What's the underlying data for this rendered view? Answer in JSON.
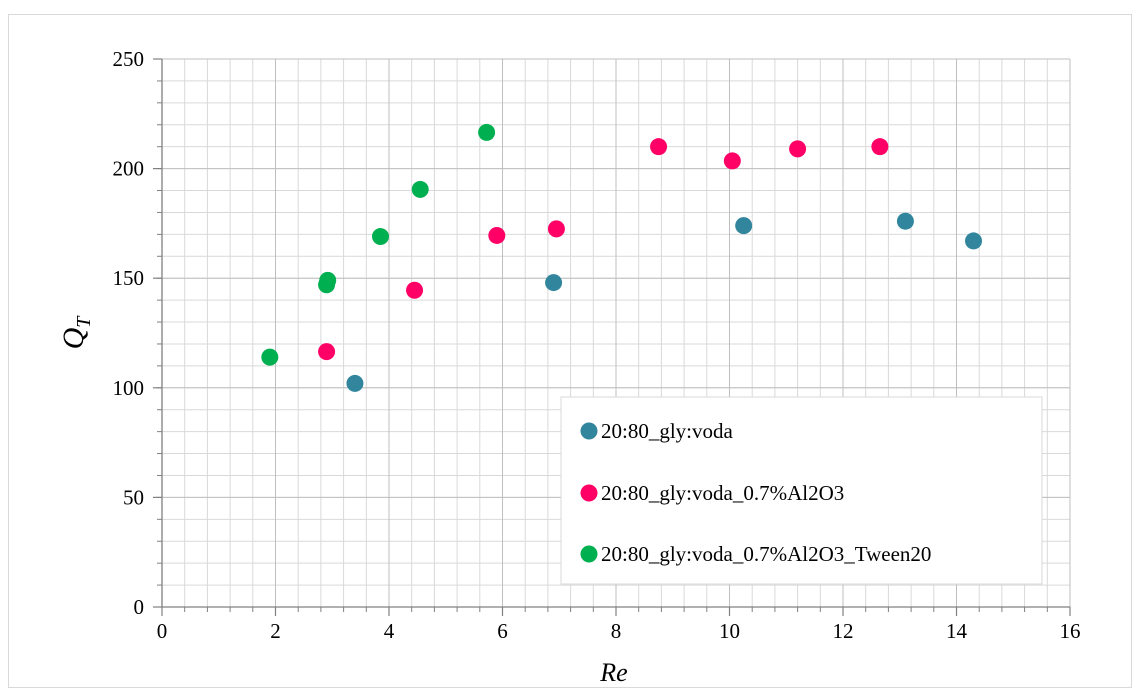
{
  "chart_data": {
    "type": "scatter",
    "title": "",
    "xlabel": "Re",
    "ylabel": "Q",
    "ylabel_subscript": "T",
    "xlim": [
      0,
      16
    ],
    "ylim": [
      0,
      250
    ],
    "x_major_ticks": [
      0,
      2,
      4,
      6,
      8,
      10,
      12,
      14,
      16
    ],
    "y_major_ticks": [
      0,
      50,
      100,
      150,
      200,
      250
    ],
    "x_minor_step": 0.4,
    "y_minor_step": 10,
    "grid": true,
    "legend_position": "bottom-right",
    "series": [
      {
        "name": "20:80_gly:voda",
        "color": "#31859c",
        "points": [
          [
            3.4,
            102
          ],
          [
            6.9,
            148
          ],
          [
            10.25,
            174
          ],
          [
            13.1,
            176
          ],
          [
            14.3,
            167
          ]
        ]
      },
      {
        "name": "20:80_gly:voda_0.7%Al2O3",
        "color": "#ff0066",
        "points": [
          [
            2.9,
            116.5
          ],
          [
            4.45,
            144.5
          ],
          [
            5.9,
            169.5
          ],
          [
            6.95,
            172.5
          ],
          [
            8.75,
            210
          ],
          [
            10.05,
            203.5
          ],
          [
            11.2,
            209
          ],
          [
            12.65,
            210
          ]
        ]
      },
      {
        "name": "20:80_gly:voda_0.7%Al2O3_Tween20",
        "color": "#00b050",
        "points": [
          [
            1.9,
            114
          ],
          [
            2.9,
            147
          ],
          [
            2.92,
            149
          ],
          [
            3.85,
            169
          ],
          [
            4.55,
            190.5
          ],
          [
            5.72,
            216.5
          ]
        ]
      }
    ]
  }
}
